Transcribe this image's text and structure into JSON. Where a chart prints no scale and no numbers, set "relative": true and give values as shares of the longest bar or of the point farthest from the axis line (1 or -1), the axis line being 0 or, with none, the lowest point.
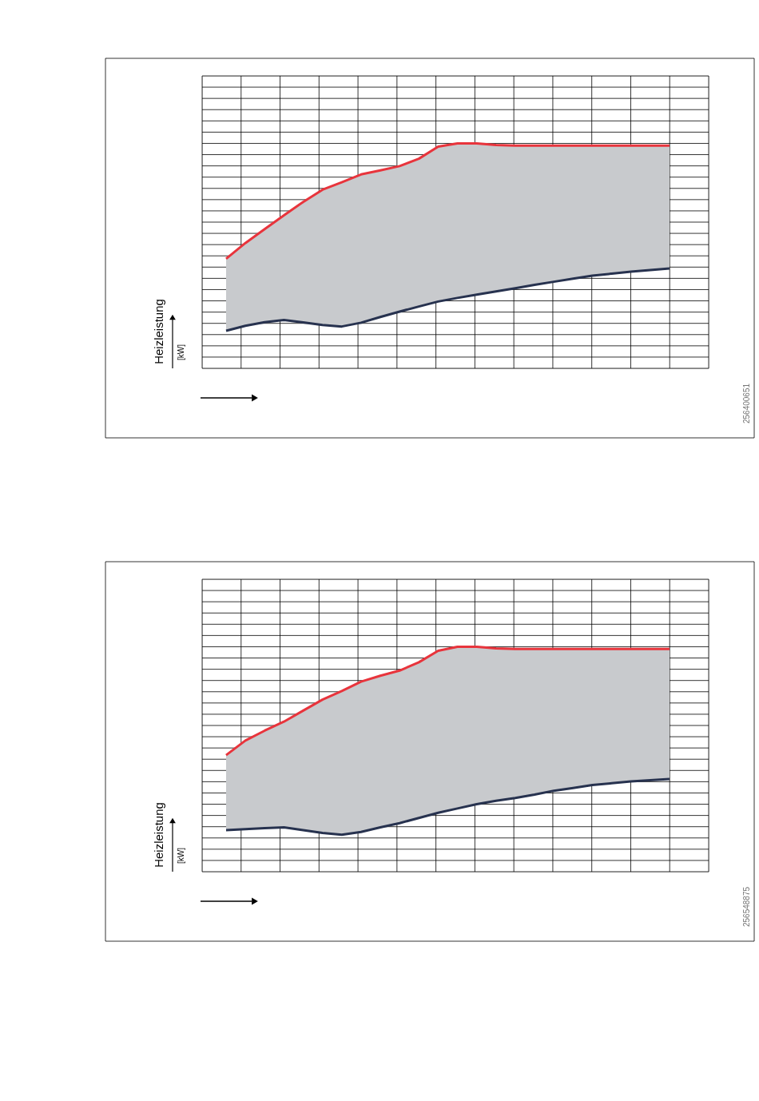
{
  "chart_data": [
    {
      "type": "line",
      "relative": true,
      "ylabel": "Heizleistung",
      "y2label": "[kW]",
      "annotations": [
        "256400651"
      ],
      "grid": true,
      "marker": "none",
      "line_style": "solid",
      "categories": [
        null,
        null,
        null,
        null,
        null,
        null,
        null,
        null,
        null,
        null,
        null,
        null,
        null,
        null,
        null,
        null,
        null,
        null,
        null,
        null,
        null,
        null,
        null,
        null
      ],
      "series": [
        {
          "color": "#e8343c",
          "values": [
            0.487,
            0.557,
            0.619,
            0.68,
            0.74,
            0.794,
            0.827,
            0.862,
            0.88,
            0.899,
            0.932,
            0.986,
            1.0,
            1.0,
            0.993,
            0.99,
            0.99,
            0.99,
            0.99,
            0.99,
            0.99,
            0.99,
            0.99,
            0.99
          ],
          "lower": [
            0.167,
            0.189,
            0.205,
            0.215,
            0.204,
            0.193,
            0.186,
            0.203,
            0.228,
            0.252,
            0.275,
            0.297,
            0.313,
            0.328,
            0.342,
            0.356,
            0.371,
            0.385,
            0.399,
            0.412,
            0.421,
            0.43,
            0.437,
            0.444
          ],
          "upper": [
            0.487,
            0.557,
            0.619,
            0.68,
            0.74,
            0.794,
            0.827,
            0.862,
            0.88,
            0.899,
            0.932,
            0.986,
            1.0,
            1.0,
            0.993,
            0.99,
            0.99,
            0.99,
            0.99,
            0.99,
            0.99,
            0.99,
            0.99,
            0.99
          ]
        },
        {
          "color": "#27324f",
          "values": [
            0.167,
            0.189,
            0.205,
            0.215,
            0.204,
            0.193,
            0.186,
            0.203,
            0.228,
            0.252,
            0.275,
            0.297,
            0.313,
            0.328,
            0.342,
            0.356,
            0.371,
            0.385,
            0.399,
            0.412,
            0.421,
            0.43,
            0.437,
            0.444
          ]
        }
      ]
    },
    {
      "type": "line",
      "relative": true,
      "ylabel": "Heizleistung",
      "y2label": "[kW]",
      "annotations": [
        "256548875"
      ],
      "grid": true,
      "marker": "none",
      "line_style": "solid",
      "categories": [
        null,
        null,
        null,
        null,
        null,
        null,
        null,
        null,
        null,
        null,
        null,
        null,
        null,
        null,
        null,
        null,
        null,
        null,
        null,
        null,
        null,
        null,
        null,
        null
      ],
      "series": [
        {
          "color": "#e8343c",
          "values": [
            0.518,
            0.583,
            0.627,
            0.667,
            0.716,
            0.765,
            0.803,
            0.845,
            0.871,
            0.894,
            0.931,
            0.982,
            1.0,
            1.0,
            0.993,
            0.99,
            0.99,
            0.99,
            0.99,
            0.99,
            0.99,
            0.99,
            0.99,
            0.99
          ],
          "lower": [
            0.185,
            0.189,
            0.194,
            0.197,
            0.185,
            0.172,
            0.164,
            0.177,
            0.197,
            0.216,
            0.239,
            0.262,
            0.281,
            0.3,
            0.315,
            0.328,
            0.343,
            0.36,
            0.372,
            0.385,
            0.393,
            0.401,
            0.407,
            0.412
          ],
          "upper": [
            0.518,
            0.583,
            0.627,
            0.667,
            0.716,
            0.765,
            0.803,
            0.845,
            0.871,
            0.894,
            0.931,
            0.982,
            1.0,
            1.0,
            0.993,
            0.99,
            0.99,
            0.99,
            0.99,
            0.99,
            0.99,
            0.99,
            0.99,
            0.99
          ]
        },
        {
          "color": "#27324f",
          "values": [
            0.185,
            0.189,
            0.194,
            0.197,
            0.185,
            0.172,
            0.164,
            0.177,
            0.197,
            0.216,
            0.239,
            0.262,
            0.281,
            0.3,
            0.315,
            0.328,
            0.343,
            0.36,
            0.372,
            0.385,
            0.393,
            0.401,
            0.407,
            0.412
          ]
        }
      ]
    }
  ]
}
